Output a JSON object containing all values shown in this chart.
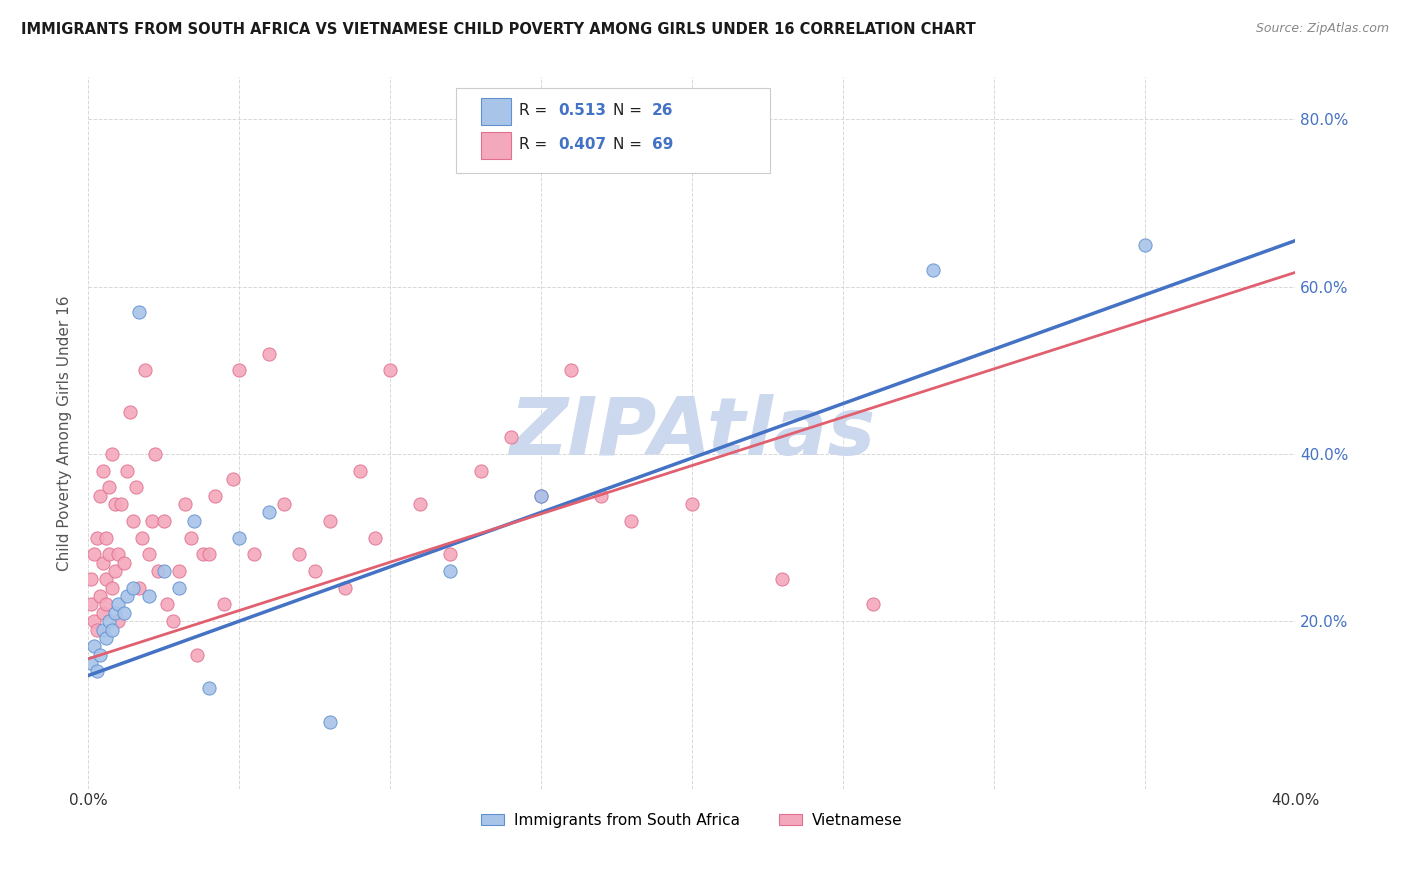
{
  "title": "IMMIGRANTS FROM SOUTH AFRICA VS VIETNAMESE CHILD POVERTY AMONG GIRLS UNDER 16 CORRELATION CHART",
  "source": "Source: ZipAtlas.com",
  "ylabel": "Child Poverty Among Girls Under 16",
  "r_blue": 0.513,
  "n_blue": 26,
  "r_pink": 0.407,
  "n_pink": 69,
  "legend_label_blue": "Immigrants from South Africa",
  "legend_label_pink": "Vietnamese",
  "blue_scatter_color": "#a8c4e8",
  "blue_edge_color": "#6090d0",
  "pink_scatter_color": "#f4a8bc",
  "pink_edge_color": "#e07090",
  "line_blue_color": "#4472c4",
  "line_pink_color": "#e06070",
  "watermark_text": "ZIPAtlas",
  "watermark_color": "#ccd8ee",
  "r_n_color": "#4472c4",
  "blue_x": [
    0.001,
    0.002,
    0.003,
    0.004,
    0.005,
    0.006,
    0.007,
    0.008,
    0.009,
    0.01,
    0.012,
    0.013,
    0.015,
    0.017,
    0.02,
    0.025,
    0.03,
    0.035,
    0.04,
    0.05,
    0.06,
    0.08,
    0.12,
    0.15,
    0.28,
    0.35
  ],
  "blue_y": [
    0.15,
    0.17,
    0.14,
    0.16,
    0.19,
    0.18,
    0.2,
    0.19,
    0.21,
    0.22,
    0.21,
    0.23,
    0.24,
    0.57,
    0.23,
    0.26,
    0.24,
    0.32,
    0.12,
    0.3,
    0.33,
    0.08,
    0.26,
    0.35,
    0.62,
    0.65
  ],
  "pink_x": [
    0.001,
    0.001,
    0.002,
    0.002,
    0.003,
    0.003,
    0.004,
    0.004,
    0.005,
    0.005,
    0.005,
    0.006,
    0.006,
    0.006,
    0.007,
    0.007,
    0.008,
    0.008,
    0.009,
    0.009,
    0.01,
    0.01,
    0.011,
    0.012,
    0.013,
    0.014,
    0.015,
    0.016,
    0.017,
    0.018,
    0.019,
    0.02,
    0.021,
    0.022,
    0.023,
    0.025,
    0.026,
    0.028,
    0.03,
    0.032,
    0.034,
    0.036,
    0.038,
    0.04,
    0.042,
    0.045,
    0.048,
    0.05,
    0.055,
    0.06,
    0.065,
    0.07,
    0.075,
    0.08,
    0.085,
    0.09,
    0.095,
    0.1,
    0.11,
    0.12,
    0.13,
    0.14,
    0.15,
    0.16,
    0.17,
    0.18,
    0.2,
    0.23,
    0.26
  ],
  "pink_y": [
    0.22,
    0.25,
    0.2,
    0.28,
    0.19,
    0.3,
    0.23,
    0.35,
    0.21,
    0.27,
    0.38,
    0.25,
    0.3,
    0.22,
    0.28,
    0.36,
    0.24,
    0.4,
    0.26,
    0.34,
    0.2,
    0.28,
    0.34,
    0.27,
    0.38,
    0.45,
    0.32,
    0.36,
    0.24,
    0.3,
    0.5,
    0.28,
    0.32,
    0.4,
    0.26,
    0.32,
    0.22,
    0.2,
    0.26,
    0.34,
    0.3,
    0.16,
    0.28,
    0.28,
    0.35,
    0.22,
    0.37,
    0.5,
    0.28,
    0.52,
    0.34,
    0.28,
    0.26,
    0.32,
    0.24,
    0.38,
    0.3,
    0.5,
    0.34,
    0.28,
    0.38,
    0.42,
    0.35,
    0.5,
    0.35,
    0.32,
    0.34,
    0.25,
    0.22
  ],
  "xlim": [
    0.0,
    0.4
  ],
  "ylim": [
    0.0,
    0.85
  ],
  "xticks": [
    0.0,
    0.05,
    0.1,
    0.15,
    0.2,
    0.25,
    0.3,
    0.35,
    0.4
  ],
  "xtick_labels_show": [
    "0.0%",
    "",
    "",
    "",
    "",
    "",
    "",
    "",
    "40.0%"
  ],
  "yticks": [
    0.0,
    0.2,
    0.4,
    0.6,
    0.8
  ],
  "ytick_labels_right": [
    "",
    "20.0%",
    "40.0%",
    "60.0%",
    "80.0%"
  ]
}
